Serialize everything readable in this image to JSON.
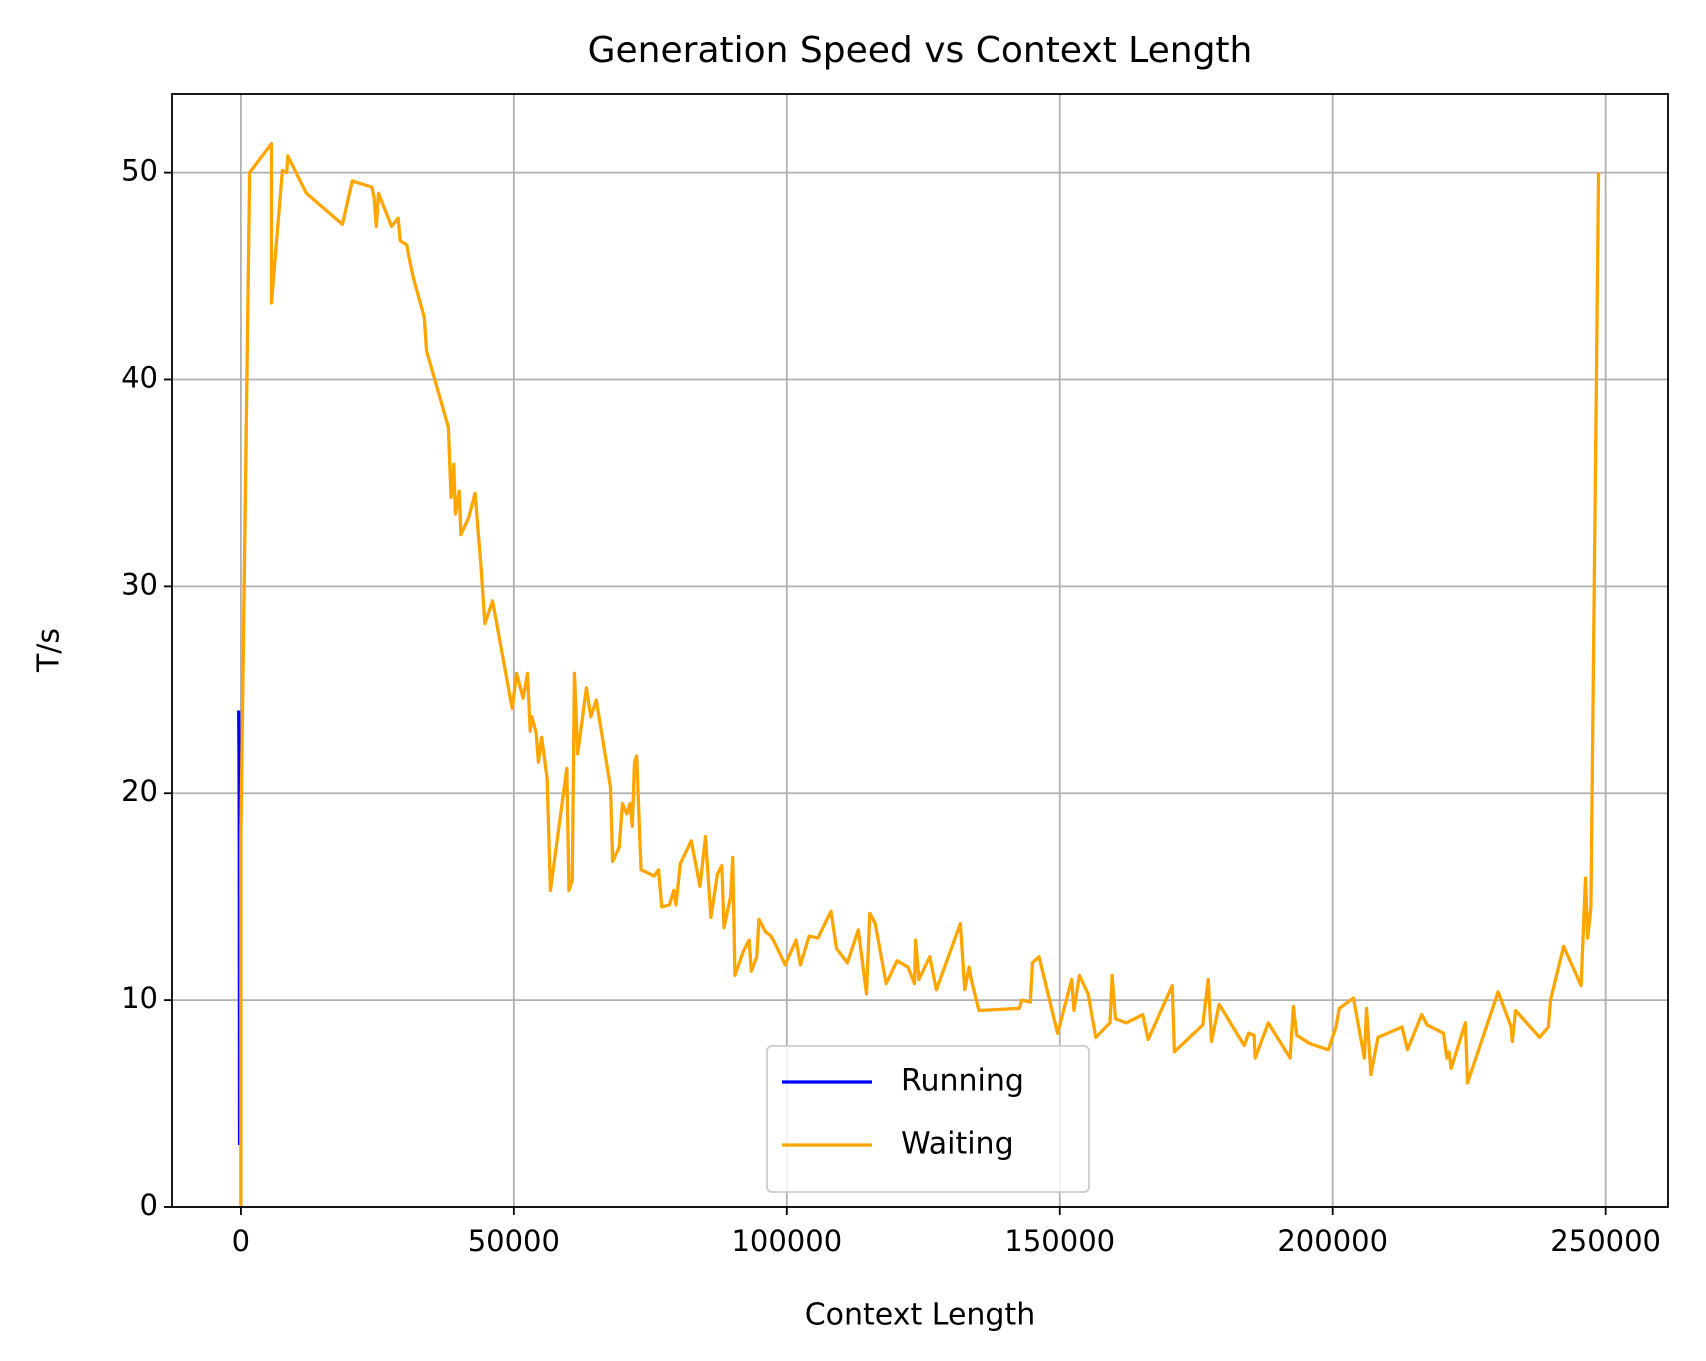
{
  "chart_data": {
    "type": "line",
    "title": "Generation Speed vs Context Length",
    "xlabel": "Context Length",
    "ylabel": "T/s",
    "xlim": [
      -12620,
      261420
    ],
    "ylim": [
      0,
      53.8
    ],
    "xticks": [
      0,
      50000,
      100000,
      150000,
      200000,
      250000
    ],
    "yticks": [
      0,
      10,
      20,
      30,
      40,
      50
    ],
    "grid": true,
    "legend": "lower center",
    "series": [
      {
        "name": "Running",
        "color": "#0000ff",
        "x": [
          -400,
          -350,
          -300,
          -250
        ],
        "values": [
          24,
          22,
          18,
          3
        ]
      },
      {
        "name": "Waiting",
        "color": "#ffa500",
        "x": [
          0,
          0,
          1600,
          5600,
          5600,
          7600,
          8400,
          8600,
          12000,
          18600,
          20400,
          24000,
          24400,
          24800,
          25200,
          27600,
          28800,
          29200,
          30400,
          30800,
          31600,
          33600,
          34000,
          38000,
          38500,
          39000,
          39300,
          40000,
          40300,
          41700,
          42900,
          44000,
          44700,
          46100,
          49700,
          50500,
          51700,
          52500,
          53000,
          53300,
          54100,
          54500,
          55100,
          56100,
          56700,
          59700,
          60100,
          60700,
          61100,
          61700,
          62500,
          63300,
          64100,
          65100,
          67700,
          68100,
          69300,
          69900,
          70700,
          71300,
          71700,
          72100,
          72500,
          73300,
          75700,
          76500,
          77100,
          78500,
          79300,
          79700,
          80500,
          82500,
          84100,
          85100,
          86100,
          87300,
          88100,
          88500,
          89700,
          90100,
          90500,
          92100,
          93100,
          93500,
          94500,
          94900,
          96100,
          97100,
          98100,
          99700,
          101700,
          102500,
          104100,
          105700,
          108100,
          109100,
          111100,
          113100,
          114600,
          115200,
          116200,
          118200,
          120200,
          122200,
          123400,
          123600,
          124200,
          126200,
          127400,
          131800,
          132600,
          133400,
          133800,
          135200,
          142600,
          143000,
          144600,
          145000,
          146200,
          149600,
          151200,
          152200,
          152600,
          153600,
          155200,
          156600,
          159200,
          159600,
          160200,
          162200,
          165200,
          166200,
          170600,
          171000,
          176200,
          177200,
          177800,
          179200,
          183800,
          184600,
          185600,
          185800,
          188200,
          192200,
          192800,
          193400,
          195800,
          199200,
          200600,
          201200,
          203800,
          205800,
          206200,
          207000,
          208300,
          212700,
          213700,
          216300,
          217300,
          220300,
          220900,
          221300,
          221700,
          224300,
          224700,
          230300,
          232700,
          232900,
          233500,
          237900,
          239500,
          239900,
          242300,
          245500,
          246300,
          246700,
          247300,
          248700
        ],
        "values": [
          0,
          18,
          50,
          51.4,
          43.7,
          50.1,
          50,
          50.8,
          49,
          47.5,
          49.6,
          49.3,
          48.8,
          47.4,
          49,
          47.4,
          47.8,
          46.7,
          46.5,
          45.9,
          44.9,
          43,
          41.4,
          37.7,
          34.3,
          35.9,
          33.5,
          34.6,
          32.5,
          33.3,
          34.5,
          30.9,
          28.2,
          29.3,
          24.1,
          25.8,
          24.6,
          25.8,
          23,
          23.7,
          22.9,
          21.5,
          22.7,
          20.7,
          15.3,
          21.2,
          15.3,
          15.8,
          25.8,
          21.9,
          23.5,
          25.1,
          23.7,
          24.5,
          20.3,
          16.7,
          17.4,
          19.5,
          19,
          19.5,
          18.4,
          21.5,
          21.8,
          16.3,
          16,
          16.3,
          14.5,
          14.6,
          15.3,
          14.6,
          16.6,
          17.7,
          15.5,
          17.9,
          14,
          16.1,
          16.5,
          13.5,
          15,
          16.9,
          11.2,
          12.4,
          12.9,
          11.4,
          12.1,
          13.9,
          13.3,
          13.1,
          12.6,
          11.7,
          12.9,
          11.7,
          13.1,
          13,
          14.3,
          12.5,
          11.8,
          13.4,
          10.3,
          14.2,
          13.7,
          10.8,
          11.9,
          11.6,
          10.8,
          12.9,
          11,
          12.1,
          10.5,
          13.7,
          10.5,
          11.6,
          11,
          9.5,
          9.6,
          10,
          9.9,
          11.8,
          12.1,
          8.4,
          10,
          11,
          9.5,
          11.2,
          10.3,
          8.2,
          8.9,
          11.2,
          9.1,
          8.9,
          9.3,
          8.1,
          10.7,
          7.5,
          8.8,
          11,
          8,
          9.8,
          7.8,
          8.4,
          8.3,
          7.2,
          8.9,
          7.2,
          9.7,
          8.3,
          7.9,
          7.6,
          8.7,
          9.6,
          10.1,
          7.2,
          9.6,
          6.4,
          8.2,
          8.7,
          7.6,
          9.3,
          8.8,
          8.4,
          7.2,
          7.5,
          6.7,
          8.9,
          6,
          10.4,
          8.7,
          8,
          9.5,
          8.2,
          8.7,
          10,
          12.6,
          10.7,
          15.9,
          13,
          14.5,
          50
        ]
      }
    ]
  }
}
